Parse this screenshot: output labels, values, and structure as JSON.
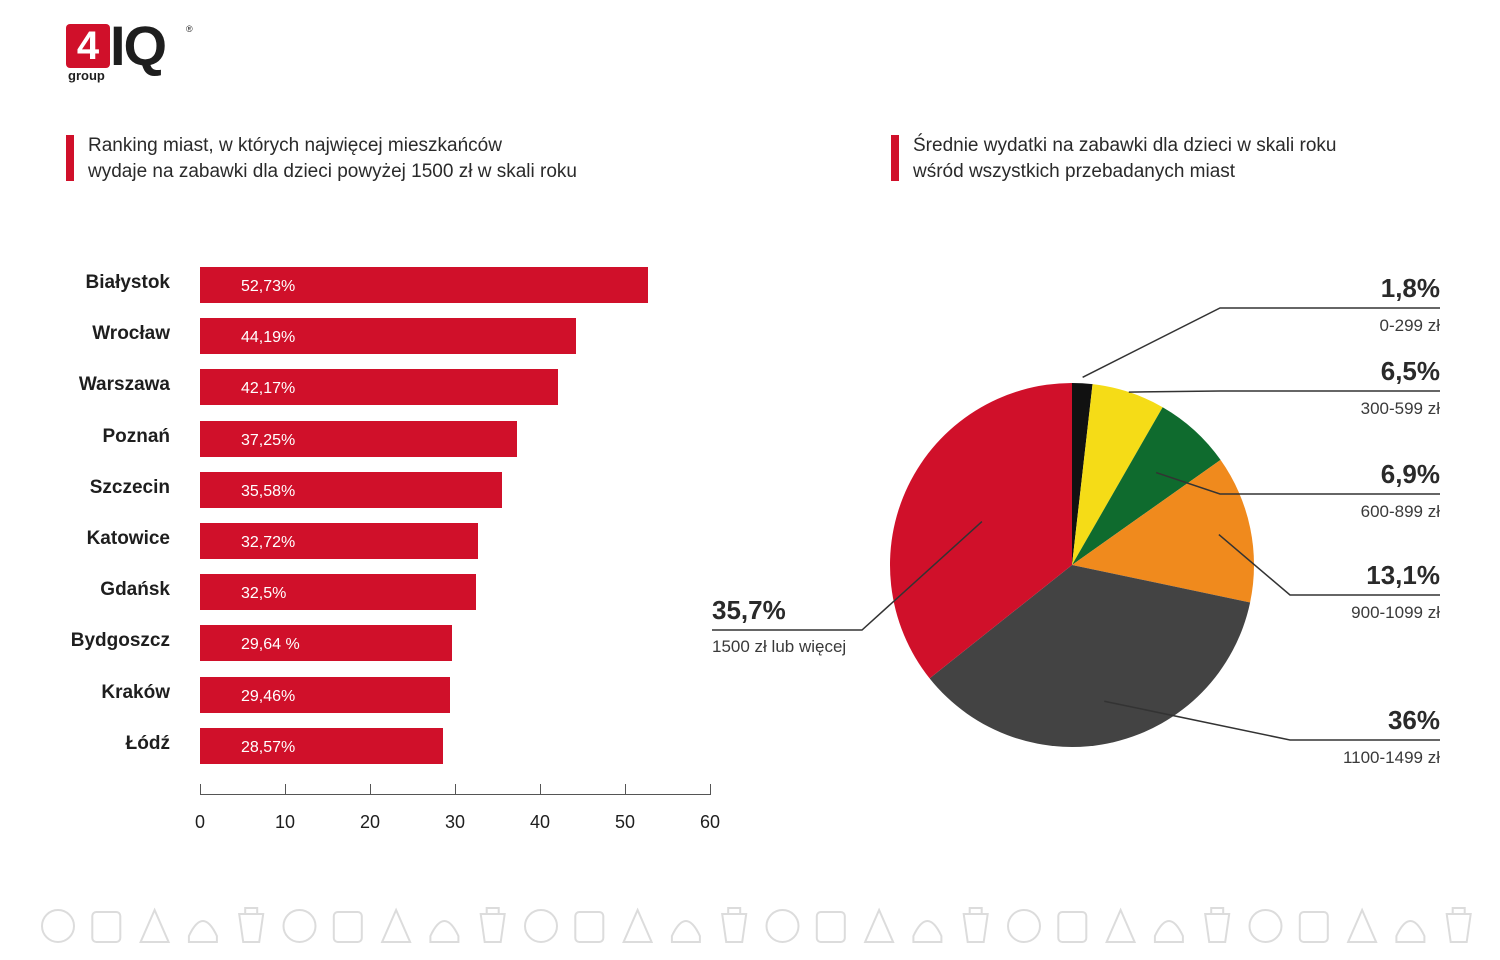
{
  "logo": {
    "digit": "4",
    "letters": "IQ",
    "sub": "group",
    "reg": "®"
  },
  "left_title": [
    "Ranking miast, w których najwięcej mieszkańców",
    "wydaje na zabawki dla dzieci powyżej 1500 zł w skali roku"
  ],
  "right_title": [
    "Średnie wydatki na zabawki dla dzieci w skali roku",
    "wśród wszystkich przebadanych miast"
  ],
  "colors": {
    "red": "#d0102a",
    "black": "#111111",
    "yellow": "#f5dc17",
    "green": "#0f6b2e",
    "orange": "#f08a1d",
    "dark_gray": "#434343"
  },
  "chart_data": [
    {
      "type": "bar",
      "orientation": "horizontal",
      "categories": [
        "Białystok",
        "Wrocław",
        "Warszawa",
        "Poznań",
        "Szczecin",
        "Katowice",
        "Gdańsk",
        "Bydgoszcz",
        "Kraków",
        "Łódź"
      ],
      "values": [
        52.73,
        44.19,
        42.17,
        37.25,
        35.58,
        32.72,
        32.5,
        29.64,
        29.46,
        28.57
      ],
      "value_labels": [
        "52,73%",
        "44,19%",
        "42,17%",
        "37,25%",
        "35,58%",
        "32,72%",
        "32,5%",
        "29,64 %",
        "29,46%",
        "28,57%"
      ],
      "xlim": [
        0,
        60
      ],
      "xticks": [
        "0",
        "10",
        "20",
        "30",
        "40",
        "50",
        "60"
      ],
      "color": "#d0102a"
    },
    {
      "type": "pie",
      "slices": [
        {
          "value": 1.8,
          "pct_label": "1,8%",
          "range_label": "0-299 zł",
          "color": "#111111"
        },
        {
          "value": 6.5,
          "pct_label": "6,5%",
          "range_label": "300-599 zł",
          "color": "#f5dc17"
        },
        {
          "value": 6.9,
          "pct_label": "6,9%",
          "range_label": "600-899 zł",
          "color": "#0f6b2e"
        },
        {
          "value": 13.1,
          "pct_label": "13,1%",
          "range_label": "900-1099 zł",
          "color": "#f08a1d"
        },
        {
          "value": 36,
          "pct_label": "36%",
          "range_label": "1100-1499 zł",
          "color": "#434343"
        },
        {
          "value": 35.7,
          "pct_label": "35,7%",
          "range_label": "1500 zł lub więcej",
          "color": "#d0102a"
        }
      ]
    }
  ]
}
